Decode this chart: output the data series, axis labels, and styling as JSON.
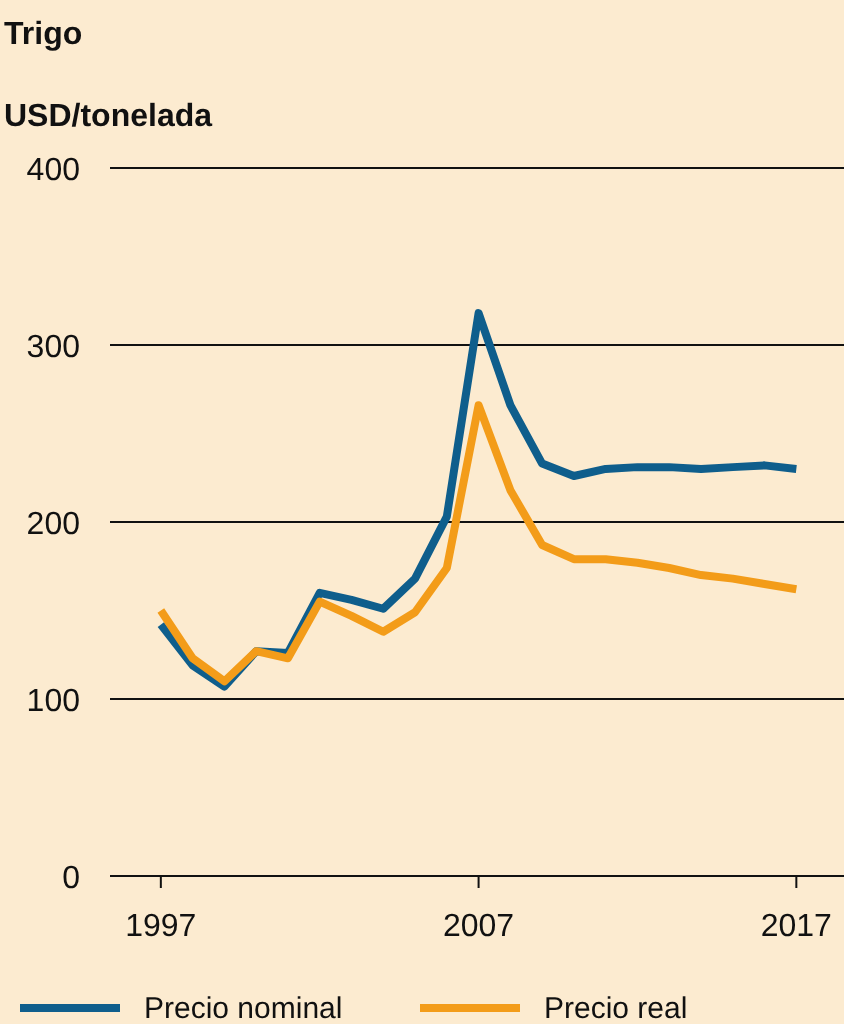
{
  "chart_data": {
    "type": "line",
    "title": "Trigo",
    "ylabel": "USD/tonelada",
    "x": [
      1997,
      1998,
      1999,
      2000,
      2001,
      2002,
      2003,
      2004,
      2005,
      2006,
      2007,
      2008,
      2009,
      2010,
      2011,
      2012,
      2013,
      2014,
      2015,
      2016,
      2017
    ],
    "series": [
      {
        "name": "Precio nominal",
        "color": "#0f5e8c",
        "values": [
          142,
          119,
          107,
          127,
          126,
          160,
          156,
          151,
          168,
          203,
          318,
          266,
          233,
          226,
          230,
          231,
          231,
          230,
          231,
          232,
          230
        ]
      },
      {
        "name": "Precio real",
        "color": "#f39c19",
        "values": [
          150,
          123,
          110,
          127,
          123,
          155,
          147,
          138,
          149,
          174,
          266,
          218,
          187,
          179,
          179,
          177,
          174,
          170,
          168,
          165,
          162
        ]
      }
    ],
    "xlim": [
      1995.4,
      2018.5
    ],
    "xticks": [
      1997,
      2007,
      2017
    ],
    "ylim": [
      0,
      400
    ],
    "yticks": [
      0,
      100,
      200,
      300,
      400
    ],
    "grid": "y",
    "legend": "bottom",
    "marker": "none",
    "line_style": "solid"
  }
}
